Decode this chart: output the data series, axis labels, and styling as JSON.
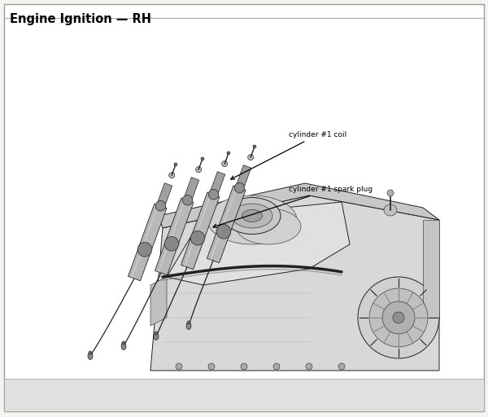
{
  "title": "Engine Ignition — RH",
  "title_fontsize": 10.5,
  "title_fontweight": "bold",
  "bg_color": "#ffffff",
  "outer_bg": "#f5f5f0",
  "border_color": "#999999",
  "border_linewidth": 1.0,
  "annotation1_text": "cylinder #1 coil",
  "annotation2_text": "cylinder #1 spark plug",
  "fig_width": 6.0,
  "fig_height": 5.12,
  "dpi": 100,
  "gray_dark": "#222222",
  "gray_mid": "#666666",
  "gray_light": "#aaaaaa",
  "gray_lighter": "#cccccc",
  "gray_bg": "#e8e8e8"
}
